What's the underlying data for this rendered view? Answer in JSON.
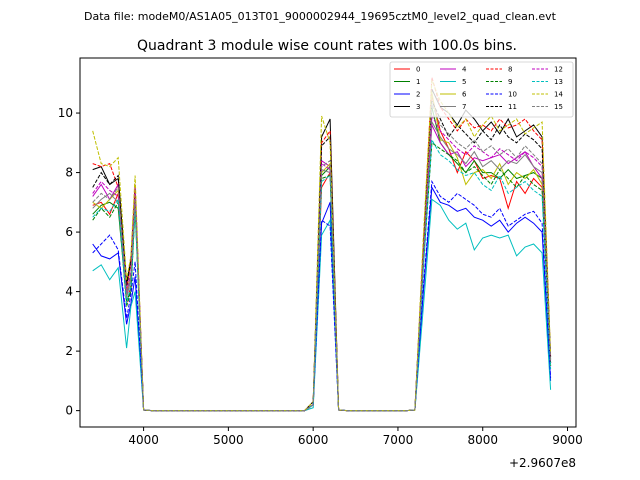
{
  "chart_data": {
    "type": "line",
    "suptitle": "Data file: modeM0/AS1A05_013T01_9000002944_19695cztM0_level2_quad_clean.evt",
    "title": "Quadrant 3 module wise count rates with 100.0s bins.",
    "xlabel": "",
    "ylabel": "",
    "x_offset_label": "+2.9607e8",
    "xlim": [
      3250,
      9100
    ],
    "ylim": [
      -0.55,
      11.85
    ],
    "xticks": [
      4000,
      5000,
      6000,
      7000,
      8000,
      9000
    ],
    "xtick_labels": [
      "4000",
      "5000",
      "6000",
      "7000",
      "8000",
      "9000"
    ],
    "yticks": [
      0,
      2,
      4,
      6,
      8,
      10
    ],
    "ytick_labels": [
      "0",
      "2",
      "4",
      "6",
      "8",
      "10"
    ],
    "grid": false,
    "legend_position": "top-right",
    "x": [
      3400,
      3500,
      3600,
      3700,
      3800,
      3850,
      3900,
      4000,
      4100,
      4200,
      4300,
      4400,
      4500,
      4600,
      4700,
      4800,
      4900,
      5000,
      5100,
      5200,
      5300,
      5400,
      5500,
      5600,
      5700,
      5800,
      5900,
      6000,
      6100,
      6200,
      6300,
      6400,
      6500,
      6600,
      6700,
      6800,
      6900,
      7000,
      7100,
      7200,
      7300,
      7400,
      7500,
      7600,
      7700,
      7800,
      7900,
      8000,
      8100,
      8200,
      8300,
      8400,
      8500,
      8600,
      8700,
      8800
    ],
    "series": [
      {
        "name": "0",
        "color": "#ff0000",
        "dash": "solid",
        "values": [
          6.9,
          7.0,
          6.6,
          7.3,
          3.6,
          4.2,
          7.0,
          0.02,
          0,
          0,
          0,
          0,
          0,
          0,
          0,
          0,
          0,
          0,
          0,
          0,
          0,
          0,
          0,
          0,
          0,
          0,
          0,
          0.2,
          7.5,
          8.0,
          0.02,
          0,
          0,
          0,
          0,
          0,
          0,
          0,
          0,
          0.02,
          5.0,
          10.6,
          9.4,
          8.8,
          8.0,
          8.7,
          8.4,
          7.8,
          7.9,
          7.8,
          6.8,
          7.7,
          7.3,
          7.8,
          7.5,
          1.6
        ]
      },
      {
        "name": "1",
        "color": "#008000",
        "dash": "solid",
        "values": [
          6.6,
          6.9,
          7.0,
          6.8,
          3.7,
          4.0,
          6.9,
          0.02,
          0,
          0,
          0,
          0,
          0,
          0,
          0,
          0,
          0,
          0,
          0,
          0,
          0,
          0,
          0,
          0,
          0,
          0,
          0,
          0.2,
          7.9,
          8.2,
          0.02,
          0,
          0,
          0,
          0,
          0,
          0,
          0,
          0,
          0.02,
          5.0,
          10.2,
          9.0,
          8.6,
          8.3,
          8.0,
          8.4,
          8.0,
          8.0,
          7.8,
          8.1,
          7.8,
          7.9,
          8.0,
          7.8,
          1.5
        ]
      },
      {
        "name": "2",
        "color": "#0000ff",
        "dash": "solid",
        "values": [
          5.6,
          5.2,
          5.1,
          5.3,
          2.9,
          3.6,
          4.5,
          0.02,
          0,
          0,
          0,
          0,
          0,
          0,
          0,
          0,
          0,
          0,
          0,
          0,
          0,
          0,
          0,
          0,
          0,
          0,
          0,
          0.2,
          6.3,
          7.0,
          0.02,
          0,
          0,
          0,
          0,
          0,
          0,
          0,
          0,
          0.02,
          4.0,
          7.5,
          7.0,
          6.9,
          6.7,
          6.8,
          6.5,
          6.4,
          6.2,
          6.4,
          6.0,
          6.3,
          6.5,
          6.3,
          6.0,
          1.0
        ]
      },
      {
        "name": "3",
        "color": "#000000",
        "dash": "solid",
        "values": [
          8.1,
          8.2,
          7.6,
          7.8,
          4.3,
          5.1,
          7.3,
          0.02,
          0,
          0,
          0,
          0,
          0,
          0,
          0,
          0,
          0,
          0,
          0,
          0,
          0,
          0,
          0,
          0,
          0,
          0,
          0,
          0.3,
          9.2,
          9.8,
          0.02,
          0,
          0,
          0,
          0,
          0,
          0,
          0,
          0,
          0.02,
          5.5,
          10.8,
          10.2,
          10.0,
          9.6,
          10.1,
          9.8,
          9.4,
          9.7,
          9.3,
          9.8,
          9.2,
          9.4,
          9.6,
          9.2,
          1.8
        ]
      },
      {
        "name": "4",
        "color": "#bf00bf",
        "dash": "solid",
        "values": [
          7.2,
          7.6,
          7.1,
          7.6,
          3.9,
          4.6,
          7.4,
          0.02,
          0,
          0,
          0,
          0,
          0,
          0,
          0,
          0,
          0,
          0,
          0,
          0,
          0,
          0,
          0,
          0,
          0,
          0,
          0,
          0.2,
          8.4,
          8.2,
          0.02,
          0,
          0,
          0,
          0,
          0,
          0,
          0,
          0,
          0.02,
          5.2,
          9.6,
          9.0,
          8.6,
          8.7,
          8.2,
          8.5,
          8.4,
          8.5,
          8.6,
          8.3,
          8.5,
          8.7,
          8.2,
          7.8,
          1.6
        ]
      },
      {
        "name": "5",
        "color": "#00bfbf",
        "dash": "solid",
        "values": [
          4.7,
          4.9,
          4.4,
          4.8,
          2.1,
          3.5,
          4.0,
          0.02,
          0,
          0,
          0,
          0,
          0,
          0,
          0,
          0,
          0,
          0,
          0,
          0,
          0,
          0,
          0,
          0,
          0,
          0,
          0,
          0.1,
          5.9,
          6.4,
          0.02,
          0,
          0,
          0,
          0,
          0,
          0,
          0,
          0,
          0.02,
          3.5,
          7.1,
          6.9,
          6.4,
          6.1,
          6.3,
          5.4,
          5.8,
          5.9,
          5.8,
          5.9,
          5.2,
          5.5,
          5.6,
          5.3,
          0.7
        ]
      },
      {
        "name": "6",
        "color": "#bfbf00",
        "dash": "solid",
        "values": [
          7.0,
          6.8,
          7.1,
          7.4,
          4.0,
          4.6,
          7.3,
          0.02,
          0,
          0,
          0,
          0,
          0,
          0,
          0,
          0,
          0,
          0,
          0,
          0,
          0,
          0,
          0,
          0,
          0,
          0,
          0,
          0.2,
          8.0,
          8.3,
          0.02,
          0,
          0,
          0,
          0,
          0,
          0,
          0,
          0,
          0.02,
          5.3,
          10.7,
          9.1,
          9.0,
          8.5,
          7.6,
          8.0,
          8.1,
          7.8,
          8.3,
          7.6,
          8.0,
          7.8,
          8.1,
          7.6,
          1.5
        ]
      },
      {
        "name": "7",
        "color": "#7f7f7f",
        "dash": "solid",
        "values": [
          6.8,
          7.1,
          7.3,
          7.0,
          3.8,
          4.4,
          7.2,
          0.02,
          0,
          0,
          0,
          0,
          0,
          0,
          0,
          0,
          0,
          0,
          0,
          0,
          0,
          0,
          0,
          0,
          0,
          0,
          0,
          0.2,
          8.1,
          8.0,
          0.02,
          0,
          0,
          0,
          0,
          0,
          0,
          0,
          0,
          0.02,
          5.0,
          9.7,
          9.2,
          8.8,
          8.6,
          8.3,
          8.7,
          8.2,
          8.4,
          8.1,
          8.4,
          8.3,
          8.6,
          8.2,
          8.0,
          1.6
        ]
      },
      {
        "name": "8",
        "color": "#ff0000",
        "dash": "dashed",
        "values": [
          8.3,
          8.2,
          8.3,
          7.5,
          4.1,
          5.0,
          7.6,
          0.02,
          0,
          0,
          0,
          0,
          0,
          0,
          0,
          0,
          0,
          0,
          0,
          0,
          0,
          0,
          0,
          0,
          0,
          0,
          0,
          0.3,
          9.0,
          9.4,
          0.02,
          0,
          0,
          0,
          0,
          0,
          0,
          0,
          0,
          0.02,
          5.6,
          11.2,
          10.2,
          9.8,
          9.4,
          9.8,
          9.5,
          9.6,
          9.4,
          9.8,
          9.5,
          9.6,
          9.8,
          9.4,
          9.1,
          1.8
        ]
      },
      {
        "name": "9",
        "color": "#008000",
        "dash": "dashed",
        "values": [
          6.4,
          6.8,
          6.5,
          7.0,
          3.5,
          4.0,
          6.8,
          0.02,
          0,
          0,
          0,
          0,
          0,
          0,
          0,
          0,
          0,
          0,
          0,
          0,
          0,
          0,
          0,
          0,
          0,
          0,
          0,
          0.2,
          7.8,
          7.9,
          0.02,
          0,
          0,
          0,
          0,
          0,
          0,
          0,
          0,
          0.02,
          4.9,
          9.0,
          8.8,
          8.6,
          8.4,
          8.0,
          8.2,
          7.9,
          7.6,
          8.1,
          7.8,
          7.5,
          7.9,
          7.6,
          7.4,
          1.5
        ]
      },
      {
        "name": "10",
        "color": "#0000ff",
        "dash": "dashed",
        "values": [
          5.3,
          5.6,
          5.9,
          5.4,
          3.1,
          3.9,
          5.0,
          0.02,
          0,
          0,
          0,
          0,
          0,
          0,
          0,
          0,
          0,
          0,
          0,
          0,
          0,
          0,
          0,
          0,
          0,
          0,
          0,
          0.2,
          6.4,
          6.2,
          0.02,
          0,
          0,
          0,
          0,
          0,
          0,
          0,
          0,
          0.02,
          4.2,
          7.7,
          7.2,
          7.0,
          7.3,
          7.1,
          6.9,
          6.6,
          6.5,
          6.8,
          6.2,
          6.4,
          6.6,
          6.7,
          6.3,
          1.1
        ]
      },
      {
        "name": "11",
        "color": "#000000",
        "dash": "dashed",
        "values": [
          7.5,
          8.0,
          7.6,
          7.9,
          4.2,
          5.0,
          7.5,
          0.02,
          0,
          0,
          0,
          0,
          0,
          0,
          0,
          0,
          0,
          0,
          0,
          0,
          0,
          0,
          0,
          0,
          0,
          0,
          0,
          0.3,
          8.9,
          9.2,
          0.02,
          0,
          0,
          0,
          0,
          0,
          0,
          0,
          0,
          0.02,
          5.4,
          10.4,
          9.8,
          9.2,
          9.6,
          9.3,
          9.0,
          9.4,
          9.1,
          9.6,
          9.2,
          9.0,
          9.3,
          9.1,
          8.8,
          1.7
        ]
      },
      {
        "name": "12",
        "color": "#bf00bf",
        "dash": "dashed",
        "values": [
          7.3,
          7.7,
          7.4,
          7.2,
          4.0,
          4.7,
          7.6,
          0.02,
          0,
          0,
          0,
          0,
          0,
          0,
          0,
          0,
          0,
          0,
          0,
          0,
          0,
          0,
          0,
          0,
          0,
          0,
          0,
          0.2,
          8.3,
          8.1,
          0.02,
          0,
          0,
          0,
          0,
          0,
          0,
          0,
          0,
          0.02,
          5.2,
          9.9,
          9.4,
          9.1,
          8.8,
          8.6,
          8.9,
          8.7,
          8.5,
          8.8,
          8.6,
          8.4,
          8.7,
          8.5,
          8.2,
          1.6
        ]
      },
      {
        "name": "13",
        "color": "#00bfbf",
        "dash": "dashed",
        "values": [
          6.5,
          6.8,
          6.7,
          7.1,
          3.6,
          4.2,
          6.7,
          0.02,
          0,
          0,
          0,
          0,
          0,
          0,
          0,
          0,
          0,
          0,
          0,
          0,
          0,
          0,
          0,
          0,
          0,
          0,
          0,
          0.2,
          7.7,
          7.9,
          0.02,
          0,
          0,
          0,
          0,
          0,
          0,
          0,
          0,
          0.02,
          4.8,
          9.1,
          8.6,
          8.4,
          8.1,
          7.9,
          8.0,
          7.6,
          7.4,
          7.9,
          7.3,
          7.5,
          7.7,
          7.4,
          7.2,
          1.4
        ]
      },
      {
        "name": "14",
        "color": "#bfbf00",
        "dash": "dashed",
        "values": [
          9.4,
          8.3,
          8.2,
          8.5,
          4.4,
          5.2,
          7.9,
          0.02,
          0,
          0,
          0,
          0,
          0,
          0,
          0,
          0,
          0,
          0,
          0,
          0,
          0,
          0,
          0,
          0,
          0,
          0,
          0,
          0.3,
          9.9,
          9.0,
          0.02,
          0,
          0,
          0,
          0,
          0,
          0,
          0,
          0,
          0.02,
          5.9,
          11.1,
          10.4,
          10.0,
          9.5,
          9.8,
          9.2,
          9.6,
          9.9,
          9.4,
          9.6,
          9.8,
          9.3,
          9.5,
          9.7,
          1.9
        ]
      },
      {
        "name": "15",
        "color": "#7f7f7f",
        "dash": "dashed",
        "values": [
          7.0,
          7.3,
          7.1,
          7.5,
          3.9,
          4.5,
          7.1,
          0.02,
          0,
          0,
          0,
          0,
          0,
          0,
          0,
          0,
          0,
          0,
          0,
          0,
          0,
          0,
          0,
          0,
          0,
          0,
          0,
          0.2,
          8.2,
          8.4,
          0.02,
          0,
          0,
          0,
          0,
          0,
          0,
          0,
          0,
          0.02,
          5.1,
          10.3,
          9.6,
          9.3,
          9.0,
          8.8,
          9.1,
          8.7,
          8.9,
          8.6,
          8.8,
          8.5,
          8.9,
          8.6,
          8.3,
          1.7
        ]
      }
    ]
  }
}
